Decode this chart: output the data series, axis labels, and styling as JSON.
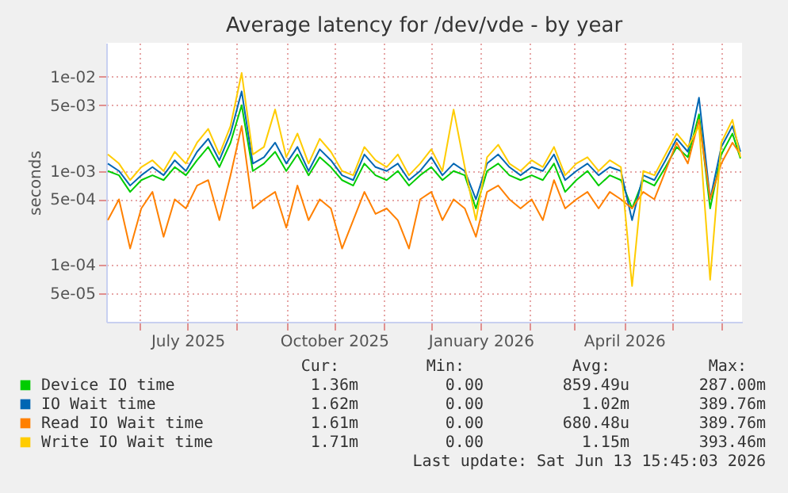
{
  "chart_data": {
    "type": "line",
    "title": "Average latency for /dev/vde - by year",
    "ylabel": "seconds",
    "x": [
      "2025-05-12",
      "2025-05-19",
      "2025-05-26",
      "2025-06-02",
      "2025-06-09",
      "2025-06-16",
      "2025-06-23",
      "2025-06-30",
      "2025-07-07",
      "2025-07-14",
      "2025-07-21",
      "2025-07-28",
      "2025-08-04",
      "2025-08-11",
      "2025-08-18",
      "2025-08-25",
      "2025-09-01",
      "2025-09-08",
      "2025-09-15",
      "2025-09-22",
      "2025-09-29",
      "2025-10-06",
      "2025-10-13",
      "2025-10-20",
      "2025-10-27",
      "2025-11-03",
      "2025-11-10",
      "2025-11-17",
      "2025-11-24",
      "2025-12-01",
      "2025-12-08",
      "2025-12-15",
      "2025-12-22",
      "2025-12-29",
      "2026-01-05",
      "2026-01-12",
      "2026-01-19",
      "2026-01-26",
      "2026-02-02",
      "2026-02-09",
      "2026-02-16",
      "2026-02-23",
      "2026-03-02",
      "2026-03-09",
      "2026-03-16",
      "2026-03-23",
      "2026-03-30",
      "2026-04-06",
      "2026-04-13",
      "2026-04-20",
      "2026-04-27",
      "2026-05-04",
      "2026-05-11",
      "2026-05-18",
      "2026-05-25",
      "2026-06-01",
      "2026-06-08",
      "2026-06-13"
    ],
    "series": [
      {
        "name": "Device IO time",
        "color": "#00cc00",
        "values": [
          0.001,
          0.0009,
          0.0006,
          0.0008,
          0.0009,
          0.0008,
          0.0011,
          0.0009,
          0.0013,
          0.0018,
          0.0011,
          0.002,
          0.005,
          0.001,
          0.0012,
          0.0016,
          0.001,
          0.0015,
          0.0009,
          0.0014,
          0.0011,
          0.0008,
          0.0007,
          0.0012,
          0.0009,
          0.0008,
          0.001,
          0.0007,
          0.0009,
          0.0011,
          0.0008,
          0.001,
          0.0009,
          0.0004,
          0.001,
          0.0012,
          0.0009,
          0.0008,
          0.0009,
          0.0008,
          0.0012,
          0.0006,
          0.0008,
          0.001,
          0.0007,
          0.0009,
          0.0008,
          0.0004,
          0.0008,
          0.0007,
          0.0011,
          0.0018,
          0.0014,
          0.004,
          0.0004,
          0.0015,
          0.0025,
          0.00136
        ]
      },
      {
        "name": "IO Wait time",
        "color": "#0066b3",
        "values": [
          0.0012,
          0.001,
          0.0007,
          0.0009,
          0.0011,
          0.0009,
          0.0013,
          0.001,
          0.0016,
          0.0022,
          0.0013,
          0.0025,
          0.007,
          0.0012,
          0.0014,
          0.002,
          0.0012,
          0.0018,
          0.001,
          0.0017,
          0.0013,
          0.0009,
          0.0008,
          0.0015,
          0.0011,
          0.001,
          0.0012,
          0.0008,
          0.001,
          0.0014,
          0.0009,
          0.0012,
          0.001,
          0.0005,
          0.0012,
          0.0015,
          0.0011,
          0.0009,
          0.0011,
          0.001,
          0.0015,
          0.0008,
          0.001,
          0.0012,
          0.0009,
          0.0011,
          0.001,
          0.0003,
          0.0009,
          0.0008,
          0.0013,
          0.0022,
          0.0016,
          0.006,
          0.0005,
          0.0018,
          0.003,
          0.0016
        ]
      },
      {
        "name": "Read IO Wait time",
        "color": "#ff8000",
        "values": [
          0.0003,
          0.0005,
          0.00015,
          0.0004,
          0.0006,
          0.0002,
          0.0005,
          0.0004,
          0.0007,
          0.0008,
          0.0003,
          0.0009,
          0.003,
          0.0004,
          0.0005,
          0.0006,
          0.00025,
          0.0007,
          0.0003,
          0.0005,
          0.0004,
          0.00015,
          0.0003,
          0.0006,
          0.00035,
          0.0004,
          0.0003,
          0.00015,
          0.0005,
          0.0006,
          0.0003,
          0.0005,
          0.0004,
          0.0002,
          0.0006,
          0.0007,
          0.0005,
          0.0004,
          0.0005,
          0.0003,
          0.0008,
          0.0004,
          0.0005,
          0.0006,
          0.0004,
          0.0006,
          0.0005,
          0.0004,
          0.0006,
          0.0005,
          0.001,
          0.002,
          0.0012,
          0.0035,
          0.0005,
          0.0012,
          0.002,
          0.0015
        ]
      },
      {
        "name": "Write IO Wait time",
        "color": "#ffcc00",
        "values": [
          0.0015,
          0.0012,
          0.0008,
          0.0011,
          0.0013,
          0.001,
          0.0016,
          0.0012,
          0.002,
          0.0028,
          0.0015,
          0.003,
          0.011,
          0.0015,
          0.0018,
          0.0045,
          0.0014,
          0.0025,
          0.0012,
          0.0022,
          0.0016,
          0.001,
          0.0009,
          0.0018,
          0.0013,
          0.0011,
          0.0015,
          0.0009,
          0.0012,
          0.0017,
          0.001,
          0.0045,
          0.0011,
          0.0003,
          0.0014,
          0.0019,
          0.0012,
          0.001,
          0.0013,
          0.0011,
          0.0018,
          0.0009,
          0.0012,
          0.0014,
          0.001,
          0.0013,
          0.0011,
          6e-05,
          0.001,
          0.0009,
          0.0015,
          0.0025,
          0.0018,
          0.003,
          7e-05,
          0.002,
          0.0035,
          0.0014
        ]
      }
    ],
    "log": true,
    "xlim": [
      "2025-05-11",
      "2026-06-14"
    ],
    "xticks": [
      {
        "value": "2025-06-01",
        "label": null
      },
      {
        "value": "2025-07-01",
        "label": "July 2025"
      },
      {
        "value": "2025-08-01",
        "label": null
      },
      {
        "value": "2025-09-01",
        "label": null
      },
      {
        "value": "2025-10-01",
        "label": "October 2025"
      },
      {
        "value": "2025-11-01",
        "label": null
      },
      {
        "value": "2025-12-01",
        "label": null
      },
      {
        "value": "2026-01-01",
        "label": "January 2026"
      },
      {
        "value": "2026-02-01",
        "label": null
      },
      {
        "value": "2026-03-01",
        "label": null
      },
      {
        "value": "2026-04-01",
        "label": "April 2026"
      },
      {
        "value": "2026-05-01",
        "label": null
      },
      {
        "value": "2026-06-01",
        "label": null
      }
    ],
    "ylim": [
      2.5e-05,
      0.023
    ],
    "yticks": [
      {
        "value": 5e-05,
        "label": "5e-05"
      },
      {
        "value": 0.0001,
        "label": "1e-04"
      },
      {
        "value": 0.0005,
        "label": "5e-04"
      },
      {
        "value": 0.001,
        "label": "1e-03"
      },
      {
        "value": 0.005,
        "label": "5e-03"
      },
      {
        "value": 0.01,
        "label": "1e-02"
      }
    ],
    "grid": true,
    "legend": "bottom",
    "annotations": [
      "Cur:",
      "Min:",
      "Avg:",
      "Max:",
      "1.36m",
      "0.00",
      "859.49u",
      "287.00m",
      "1.62m",
      "0.00",
      "1.02m",
      "389.76m",
      "1.61m",
      "0.00",
      "680.48u",
      "389.76m",
      "1.71m",
      "0.00",
      "1.15m",
      "393.46m",
      "Last update: Sat Jun 13 15:45:03 2026"
    ]
  }
}
